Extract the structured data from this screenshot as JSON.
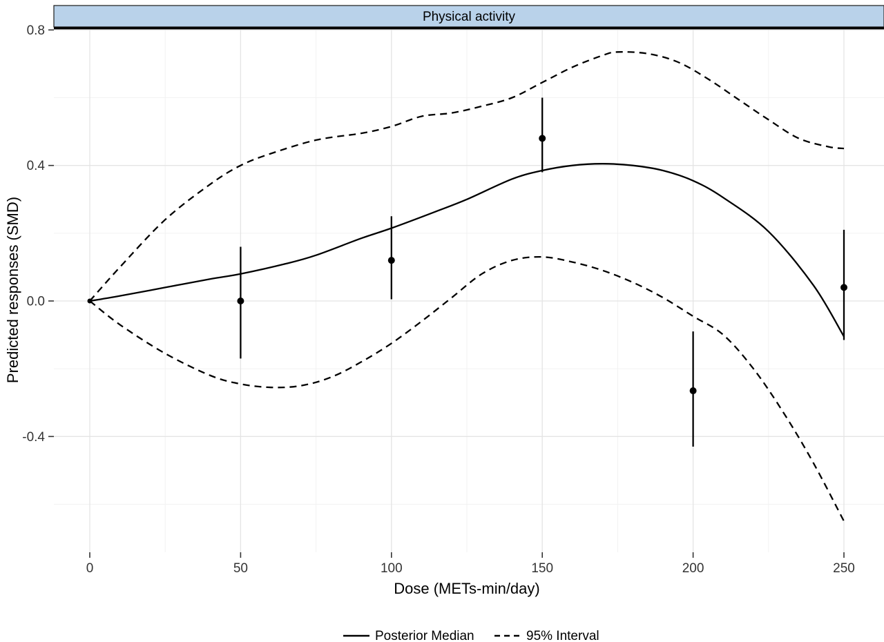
{
  "figure": {
    "strip_title": "Physical activity",
    "x_axis_title": "Dose (METs-min/day)",
    "y_axis_title": "Predicted responses (SMD)"
  },
  "legend": {
    "items": [
      {
        "label": "Posterior Median",
        "style": "solid"
      },
      {
        "label": "95% Interval",
        "style": "dashed"
      }
    ]
  },
  "chart_data": {
    "type": "line",
    "title": "Physical activity",
    "xlabel": "Dose (METs-min/day)",
    "ylabel": "Predicted responses (SMD)",
    "xlim": [
      -12,
      263
    ],
    "ylim": [
      -0.74,
      0.81
    ],
    "x_ticks": [
      0,
      50,
      100,
      150,
      200,
      250
    ],
    "x_minor_ticks": [
      25,
      75,
      125,
      175,
      225
    ],
    "y_ticks": [
      -0.4,
      0.0,
      0.4,
      0.8
    ],
    "y_minor_ticks": [
      -0.6,
      -0.2,
      0.2,
      0.6
    ],
    "grid": true,
    "legend_position": "bottom",
    "series": [
      {
        "name": "Posterior Median",
        "style": "solid",
        "x": [
          0,
          10,
          25,
          40,
          50,
          65,
          75,
          90,
          100,
          115,
          125,
          140,
          150,
          160,
          170,
          180,
          190,
          200,
          210,
          225,
          240,
          250
        ],
        "y": [
          0,
          0.015,
          0.04,
          0.065,
          0.08,
          0.11,
          0.135,
          0.185,
          0.215,
          0.265,
          0.3,
          0.36,
          0.385,
          0.4,
          0.405,
          0.4,
          0.385,
          0.355,
          0.305,
          0.205,
          0.045,
          -0.105
        ]
      },
      {
        "name": "95% Interval upper",
        "style": "dashed",
        "x": [
          0,
          10,
          25,
          40,
          50,
          60,
          75,
          90,
          100,
          110,
          120,
          130,
          140,
          150,
          160,
          170,
          175,
          185,
          195,
          205,
          215,
          225,
          235,
          245,
          250
        ],
        "y": [
          0,
          0.1,
          0.24,
          0.345,
          0.4,
          0.435,
          0.475,
          0.495,
          0.515,
          0.545,
          0.555,
          0.575,
          0.6,
          0.645,
          0.69,
          0.725,
          0.735,
          0.73,
          0.705,
          0.655,
          0.595,
          0.535,
          0.48,
          0.455,
          0.45
        ]
      },
      {
        "name": "95% Interval lower",
        "style": "dashed",
        "x": [
          0,
          10,
          25,
          40,
          50,
          60,
          70,
          80,
          90,
          100,
          110,
          120,
          130,
          140,
          150,
          160,
          170,
          180,
          190,
          200,
          210,
          220,
          230,
          240,
          250
        ],
        "y": [
          0,
          -0.07,
          -0.155,
          -0.22,
          -0.245,
          -0.255,
          -0.25,
          -0.225,
          -0.18,
          -0.125,
          -0.06,
          0.01,
          0.08,
          0.12,
          0.13,
          0.115,
          0.09,
          0.055,
          0.01,
          -0.045,
          -0.1,
          -0.2,
          -0.33,
          -0.48,
          -0.65
        ]
      }
    ],
    "points": [
      {
        "x": 0,
        "y": 0,
        "lo": 0,
        "hi": 0
      },
      {
        "x": 50,
        "y": 0.0,
        "lo": -0.17,
        "hi": 0.16
      },
      {
        "x": 100,
        "y": 0.12,
        "lo": 0.005,
        "hi": 0.25
      },
      {
        "x": 150,
        "y": 0.48,
        "lo": 0.38,
        "hi": 0.6
      },
      {
        "x": 200,
        "y": -0.265,
        "lo": -0.43,
        "hi": -0.09
      },
      {
        "x": 250,
        "y": 0.04,
        "lo": -0.115,
        "hi": 0.21
      }
    ],
    "colors": {
      "line": "#000000",
      "point": "#000000",
      "strip_bg": "#b9d2ea",
      "strip_border": "#1a1a1a",
      "grid_major": "#e4e4e4",
      "grid_minor": "#f2f2f2",
      "tick": "#333333",
      "tick_label": "#333333",
      "axis_title": "#000000"
    }
  }
}
